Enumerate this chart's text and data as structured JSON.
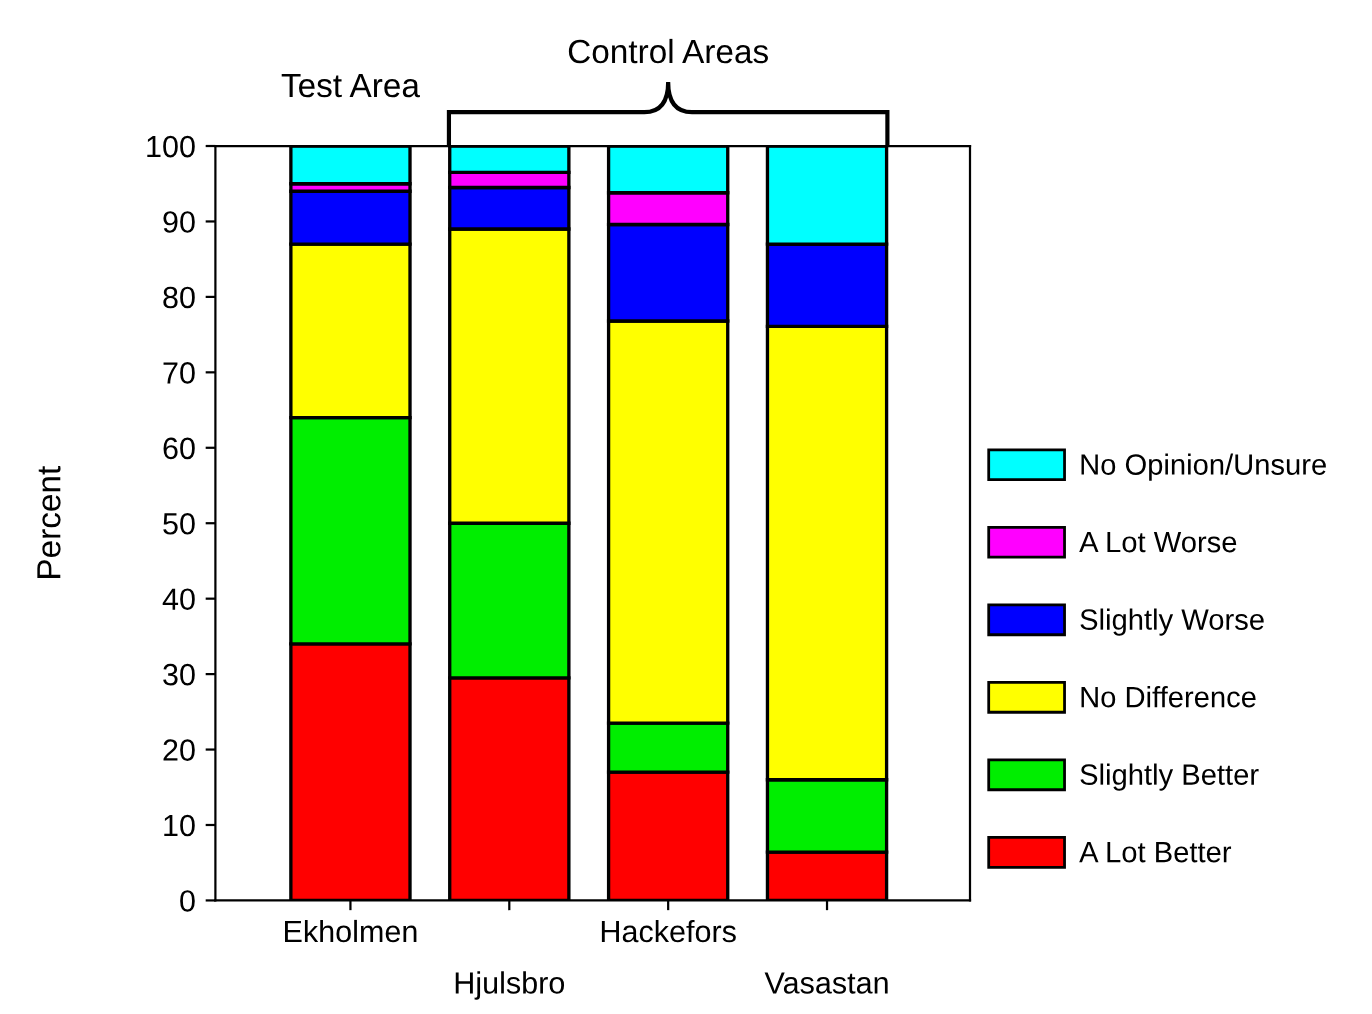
{
  "chart_data": {
    "type": "bar",
    "stacked": true,
    "categories": [
      "Ekholmen",
      "Hjulsbro",
      "Hackefors",
      "Vasastan"
    ],
    "ylabel": "Percent",
    "ylim": [
      0,
      100
    ],
    "yticks": [
      0,
      10,
      20,
      30,
      40,
      50,
      60,
      70,
      80,
      90,
      100
    ],
    "grid": false,
    "legend": "right",
    "annotations": [
      "Test Area",
      {
        "text": "Control Areas",
        "y": 100
      }
    ],
    "series": [
      {
        "name": "A Lot Better",
        "color": "#ff0000",
        "values": [
          34,
          29.5,
          17,
          6.4
        ]
      },
      {
        "name": "Slightly Better",
        "color": "#00ee00",
        "values": [
          30,
          20.5,
          6.5,
          9.6
        ]
      },
      {
        "name": "No Difference",
        "color": "#ffff00",
        "values": [
          23,
          39,
          53.3,
          60.1
        ]
      },
      {
        "name": "Slightly Worse",
        "color": "#0000ff",
        "values": [
          7,
          5.5,
          12.8,
          10.9
        ]
      },
      {
        "name": "A Lot Worse",
        "color": "#ff00ff",
        "values": [
          1,
          2,
          4.2,
          0
        ]
      },
      {
        "name": "No Opinion/Unsure",
        "color": "#00ffff",
        "values": [
          5,
          3.5,
          6.2,
          13
        ]
      }
    ]
  }
}
